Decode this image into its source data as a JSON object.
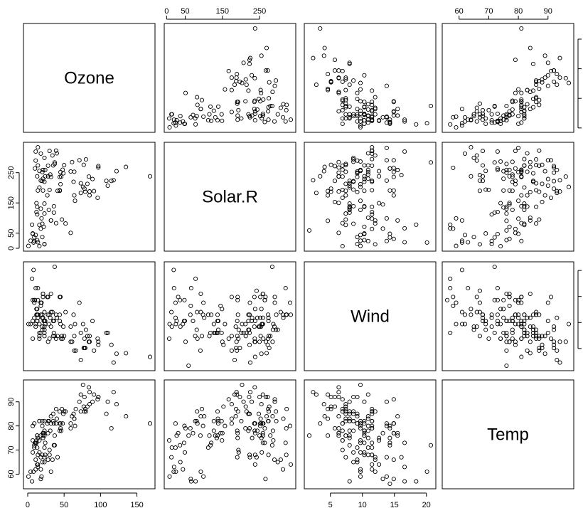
{
  "chart_data": {
    "type": "scatter",
    "subtype": "scatterplot-matrix",
    "variables": [
      "Ozone",
      "Solar.R",
      "Wind",
      "Temp"
    ],
    "ranges": {
      "Ozone": [
        1,
        168
      ],
      "Solar.R": [
        7,
        334
      ],
      "Wind": [
        1.7,
        20.7
      ],
      "Temp": [
        56,
        97
      ]
    },
    "ticks": {
      "Ozone": [
        0,
        50,
        100,
        150
      ],
      "Solar.R": [
        0,
        50,
        150,
        250
      ],
      "Wind": [
        5,
        10,
        15,
        20
      ],
      "Temp": [
        60,
        70,
        80,
        90
      ]
    },
    "tick_labels": {
      "Ozone": [
        "0",
        "50",
        "100",
        "150"
      ],
      "Solar.R": [
        "0",
        "50",
        "150",
        "250"
      ],
      "Wind": [
        "5",
        "10",
        "15",
        "20"
      ],
      "Temp": [
        "60",
        "70",
        "80",
        "90"
      ]
    },
    "axis_placement": {
      "bottom": [
        "Ozone",
        "Wind"
      ],
      "top": [
        "Solar.R",
        "Temp"
      ],
      "left": [
        "Solar.R",
        "Temp"
      ],
      "right": [
        "Ozone",
        "Wind"
      ]
    },
    "grid": false,
    "legend": "none",
    "marker": "open-circle",
    "observations": [
      [
        41,
        190,
        7.4,
        67
      ],
      [
        36,
        118,
        8.0,
        72
      ],
      [
        12,
        149,
        12.6,
        74
      ],
      [
        18,
        313,
        11.5,
        62
      ],
      [
        null,
        null,
        14.3,
        56
      ],
      [
        28,
        null,
        14.9,
        66
      ],
      [
        23,
        299,
        8.6,
        65
      ],
      [
        19,
        99,
        13.8,
        59
      ],
      [
        8,
        19,
        20.1,
        61
      ],
      [
        null,
        194,
        8.6,
        69
      ],
      [
        7,
        null,
        6.9,
        74
      ],
      [
        16,
        256,
        9.7,
        69
      ],
      [
        11,
        290,
        9.2,
        66
      ],
      [
        14,
        274,
        10.9,
        68
      ],
      [
        18,
        65,
        13.2,
        58
      ],
      [
        14,
        334,
        11.5,
        64
      ],
      [
        34,
        307,
        12.0,
        66
      ],
      [
        6,
        78,
        18.4,
        57
      ],
      [
        30,
        322,
        11.5,
        68
      ],
      [
        11,
        44,
        9.7,
        62
      ],
      [
        1,
        8,
        9.7,
        59
      ],
      [
        11,
        320,
        16.6,
        73
      ],
      [
        4,
        25,
        9.7,
        61
      ],
      [
        32,
        92,
        12.0,
        61
      ],
      [
        null,
        66,
        16.6,
        57
      ],
      [
        null,
        266,
        14.9,
        58
      ],
      [
        null,
        null,
        8.0,
        57
      ],
      [
        23,
        13,
        12.0,
        67
      ],
      [
        45,
        252,
        14.9,
        81
      ],
      [
        115,
        223,
        5.7,
        79
      ],
      [
        37,
        279,
        7.4,
        76
      ],
      [
        null,
        286,
        8.6,
        78
      ],
      [
        null,
        287,
        9.7,
        74
      ],
      [
        null,
        242,
        16.1,
        67
      ],
      [
        null,
        186,
        9.2,
        84
      ],
      [
        null,
        220,
        8.6,
        85
      ],
      [
        null,
        264,
        14.3,
        79
      ],
      [
        29,
        127,
        9.7,
        82
      ],
      [
        null,
        273,
        6.9,
        87
      ],
      [
        71,
        291,
        13.8,
        90
      ],
      [
        39,
        323,
        11.5,
        87
      ],
      [
        null,
        259,
        10.9,
        93
      ],
      [
        null,
        250,
        9.2,
        92
      ],
      [
        23,
        148,
        8.0,
        82
      ],
      [
        null,
        332,
        13.8,
        80
      ],
      [
        null,
        322,
        11.5,
        79
      ],
      [
        21,
        191,
        14.9,
        77
      ],
      [
        37,
        284,
        20.7,
        72
      ],
      [
        20,
        37,
        9.2,
        65
      ],
      [
        12,
        120,
        11.5,
        73
      ],
      [
        13,
        137,
        10.3,
        76
      ],
      [
        null,
        150,
        6.3,
        77
      ],
      [
        null,
        59,
        1.7,
        76
      ],
      [
        null,
        91,
        4.6,
        76
      ],
      [
        null,
        250,
        6.3,
        76
      ],
      [
        null,
        135,
        8.0,
        75
      ],
      [
        null,
        127,
        8.0,
        78
      ],
      [
        null,
        47,
        10.3,
        73
      ],
      [
        null,
        98,
        11.5,
        80
      ],
      [
        null,
        31,
        14.9,
        77
      ],
      [
        null,
        138,
        8.0,
        83
      ],
      [
        135,
        269,
        4.1,
        84
      ],
      [
        49,
        248,
        9.2,
        85
      ],
      [
        32,
        236,
        9.2,
        81
      ],
      [
        null,
        101,
        10.9,
        84
      ],
      [
        64,
        175,
        4.6,
        83
      ],
      [
        40,
        314,
        10.9,
        83
      ],
      [
        77,
        276,
        5.1,
        88
      ],
      [
        97,
        267,
        6.3,
        92
      ],
      [
        97,
        272,
        5.7,
        92
      ],
      [
        85,
        175,
        7.4,
        89
      ],
      [
        null,
        139,
        8.6,
        82
      ],
      [
        10,
        264,
        14.3,
        73
      ],
      [
        27,
        175,
        14.9,
        81
      ],
      [
        null,
        291,
        14.9,
        91
      ],
      [
        7,
        48,
        14.3,
        80
      ],
      [
        48,
        260,
        6.9,
        81
      ],
      [
        35,
        274,
        10.3,
        82
      ],
      [
        61,
        285,
        6.3,
        84
      ],
      [
        79,
        187,
        5.1,
        87
      ],
      [
        63,
        220,
        11.5,
        85
      ],
      [
        16,
        7,
        6.9,
        74
      ],
      [
        null,
        258,
        9.7,
        81
      ],
      [
        null,
        295,
        11.5,
        82
      ],
      [
        80,
        294,
        8.6,
        86
      ],
      [
        108,
        223,
        8.0,
        85
      ],
      [
        20,
        81,
        8.6,
        82
      ],
      [
        52,
        82,
        12.0,
        86
      ],
      [
        82,
        213,
        7.4,
        88
      ],
      [
        50,
        275,
        7.4,
        86
      ],
      [
        64,
        253,
        7.4,
        83
      ],
      [
        59,
        254,
        9.2,
        81
      ],
      [
        39,
        83,
        6.9,
        81
      ],
      [
        9,
        24,
        13.8,
        81
      ],
      [
        16,
        77,
        7.4,
        82
      ],
      [
        78,
        null,
        6.9,
        86
      ],
      [
        35,
        null,
        7.4,
        85
      ],
      [
        66,
        null,
        4.6,
        87
      ],
      [
        122,
        255,
        4.0,
        89
      ],
      [
        89,
        229,
        10.3,
        90
      ],
      [
        110,
        207,
        8.0,
        90
      ],
      [
        null,
        222,
        8.6,
        92
      ],
      [
        null,
        137,
        11.5,
        86
      ],
      [
        44,
        192,
        11.5,
        86
      ],
      [
        28,
        273,
        11.5,
        82
      ],
      [
        65,
        157,
        9.7,
        80
      ],
      [
        null,
        64,
        11.5,
        79
      ],
      [
        22,
        71,
        10.3,
        77
      ],
      [
        59,
        51,
        6.3,
        79
      ],
      [
        23,
        115,
        7.4,
        76
      ],
      [
        31,
        244,
        10.9,
        78
      ],
      [
        44,
        190,
        10.3,
        78
      ],
      [
        21,
        259,
        15.5,
        77
      ],
      [
        9,
        36,
        14.3,
        72
      ],
      [
        null,
        255,
        12.6,
        75
      ],
      [
        45,
        212,
        9.7,
        79
      ],
      [
        168,
        238,
        3.4,
        81
      ],
      [
        73,
        215,
        8.0,
        86
      ],
      [
        null,
        153,
        5.7,
        88
      ],
      [
        76,
        203,
        9.7,
        97
      ],
      [
        118,
        225,
        2.3,
        94
      ],
      [
        84,
        237,
        6.3,
        96
      ],
      [
        85,
        188,
        6.3,
        94
      ],
      [
        96,
        167,
        6.9,
        91
      ],
      [
        78,
        197,
        5.1,
        92
      ],
      [
        73,
        183,
        2.8,
        93
      ],
      [
        91,
        189,
        4.6,
        93
      ],
      [
        47,
        95,
        7.4,
        87
      ],
      [
        32,
        92,
        15.5,
        84
      ],
      [
        20,
        252,
        10.9,
        80
      ],
      [
        23,
        220,
        10.3,
        78
      ],
      [
        21,
        230,
        10.9,
        75
      ],
      [
        24,
        259,
        9.7,
        73
      ],
      [
        44,
        236,
        14.9,
        81
      ],
      [
        21,
        259,
        15.5,
        76
      ],
      [
        28,
        238,
        6.3,
        77
      ],
      [
        9,
        24,
        10.9,
        71
      ],
      [
        13,
        112,
        11.5,
        71
      ],
      [
        46,
        237,
        6.9,
        78
      ],
      [
        18,
        224,
        13.8,
        67
      ],
      [
        13,
        27,
        10.3,
        76
      ],
      [
        24,
        238,
        10.3,
        68
      ],
      [
        16,
        201,
        8.0,
        82
      ],
      [
        13,
        238,
        12.6,
        64
      ],
      [
        23,
        14,
        9.2,
        71
      ],
      [
        36,
        139,
        10.3,
        81
      ],
      [
        7,
        49,
        10.3,
        69
      ],
      [
        14,
        20,
        16.6,
        63
      ],
      [
        30,
        193,
        6.9,
        70
      ],
      [
        null,
        145,
        13.2,
        77
      ],
      [
        14,
        191,
        14.3,
        75
      ],
      [
        18,
        131,
        8.0,
        76
      ],
      [
        20,
        223,
        11.5,
        68
      ]
    ]
  }
}
